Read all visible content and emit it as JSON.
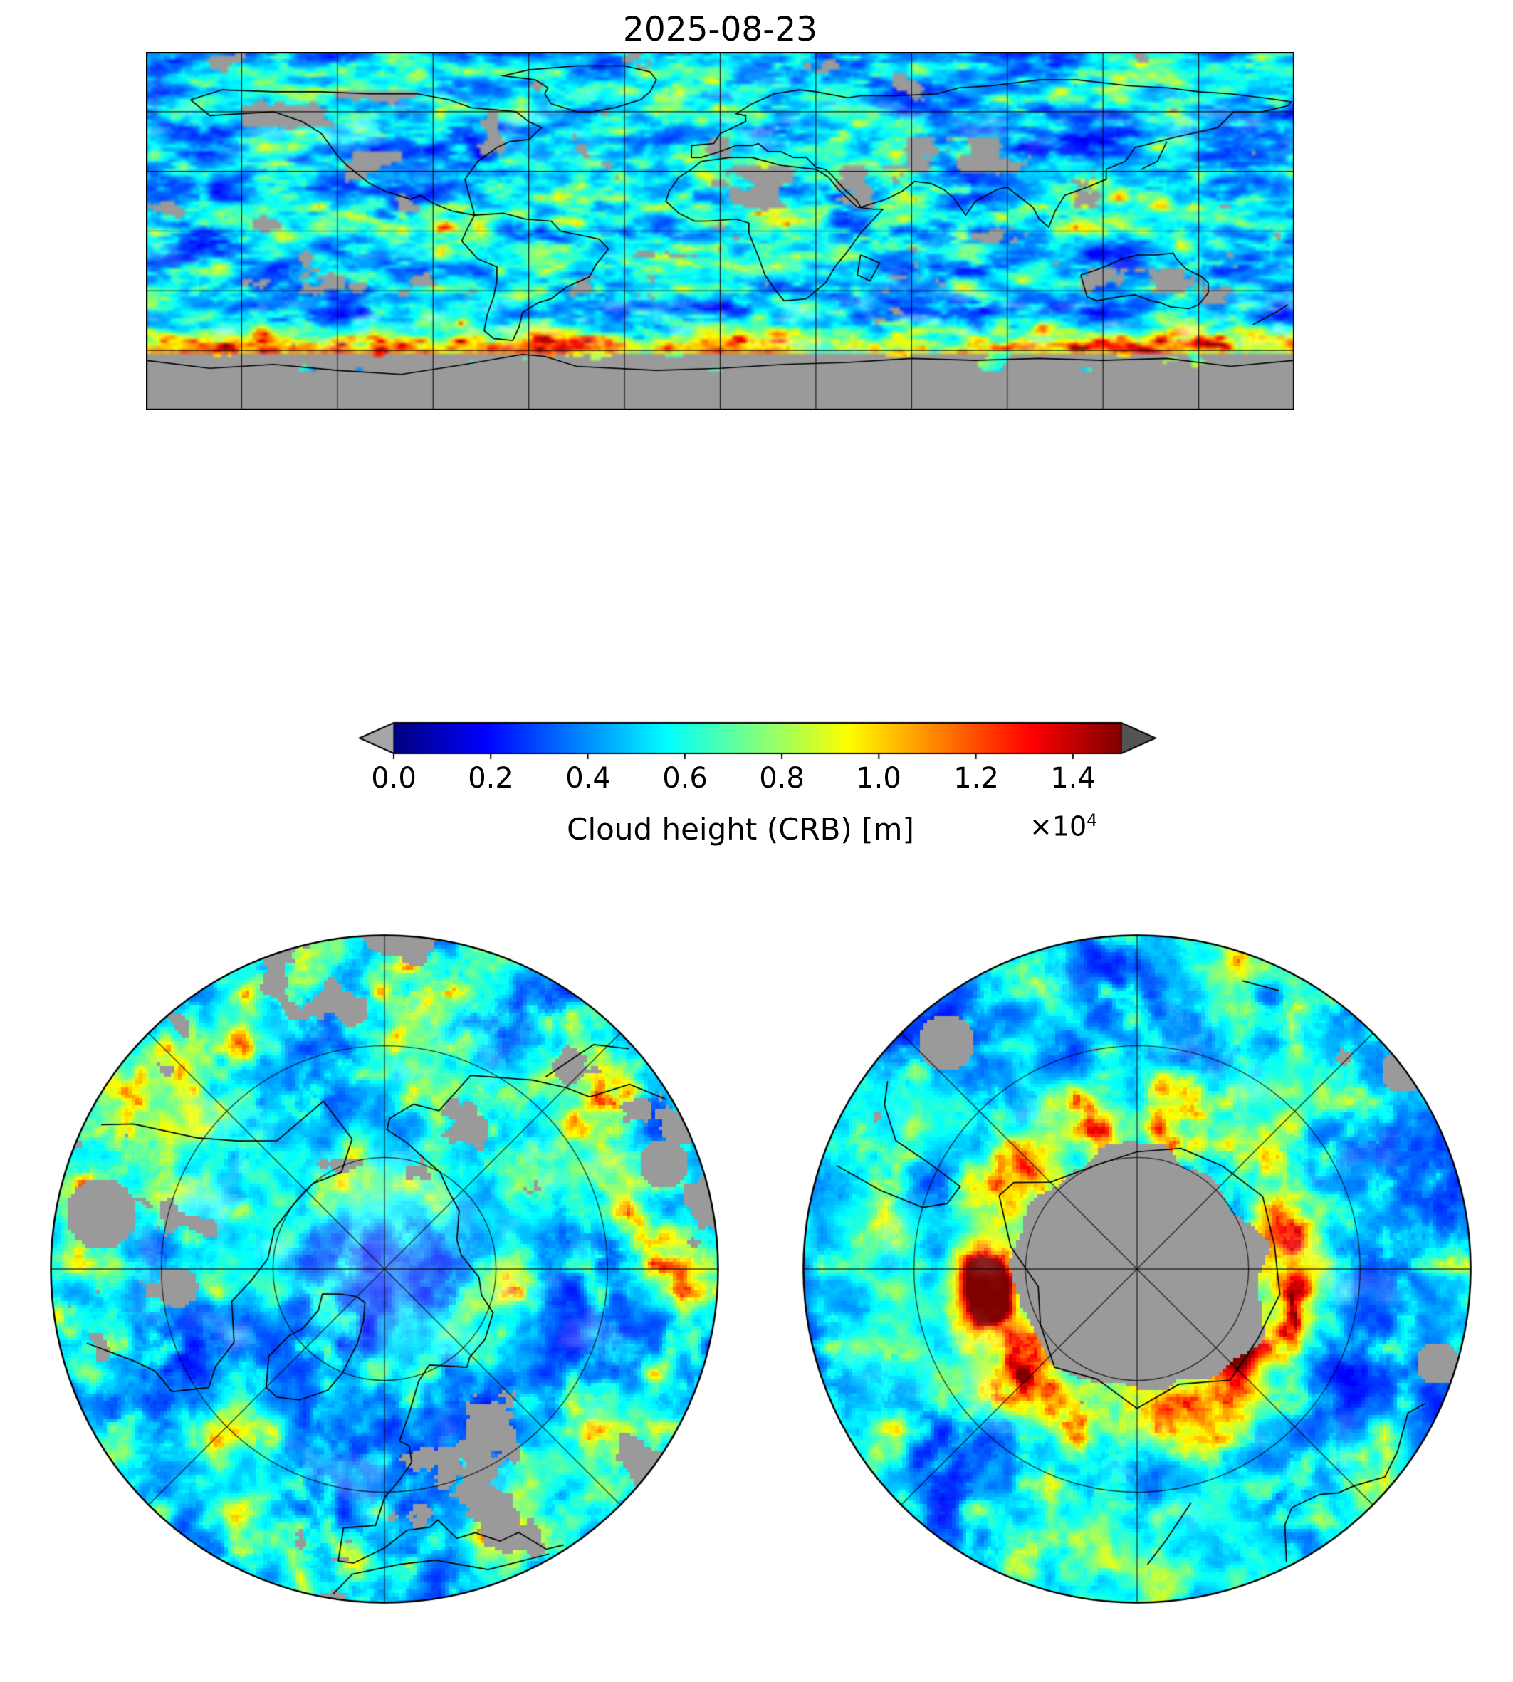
{
  "figure": {
    "title": "2025-08-23",
    "colorbar": {
      "label": "Cloud height (CRB) [m]",
      "multiplier": "×10",
      "exponent": "4",
      "ticks": [
        "0.0",
        "0.2",
        "0.4",
        "0.6",
        "0.8",
        "1.0",
        "1.2",
        "1.4"
      ]
    }
  },
  "chart_data": {
    "type": "heatmap",
    "title": "2025-08-23",
    "variable": "Cloud height (CRB) [m]",
    "units_scale": "×10^4 m",
    "colormap": "jet",
    "colorbar": {
      "vmin": 0.0,
      "vmax": 1.5,
      "tick_values": [
        0.0,
        0.2,
        0.4,
        0.6,
        0.8,
        1.0,
        1.2,
        1.4
      ],
      "extend": "both",
      "under_color": "#a6a6a6",
      "over_color": "#545454"
    },
    "missing_data_color": "#9a9a9a",
    "panels": [
      {
        "name": "global-map",
        "projection": "equirectangular",
        "extent": "global",
        "gridlines_deg": 30
      },
      {
        "name": "north-polar-map",
        "projection": "north polar stereographic",
        "gridline_circles_lat": [
          70,
          50
        ],
        "spokes_deg": 45
      },
      {
        "name": "south-polar-map",
        "projection": "south polar stereographic",
        "gridline_circles_lat": [
          -70,
          -50
        ],
        "spokes_deg": 45
      }
    ],
    "description": "Cloud-top height (CRB) field for 2025-08-23. Oceans mostly 0.1-0.4x10^4 m (dark/medium blue) with cyan-green cloud streaks 0.4-0.7x10^4 m; bright yellow-orange band of high cloud 0.8-1.2x10^4 m along the Antarctic coastal storm track and scattered deep-convection cells up to >1.4x10^4 m (red, e.g. over the South China Sea and near the Antarctic coast); gray = no retrieval (Antarctic interior, deserts, scattered gaps)."
  }
}
